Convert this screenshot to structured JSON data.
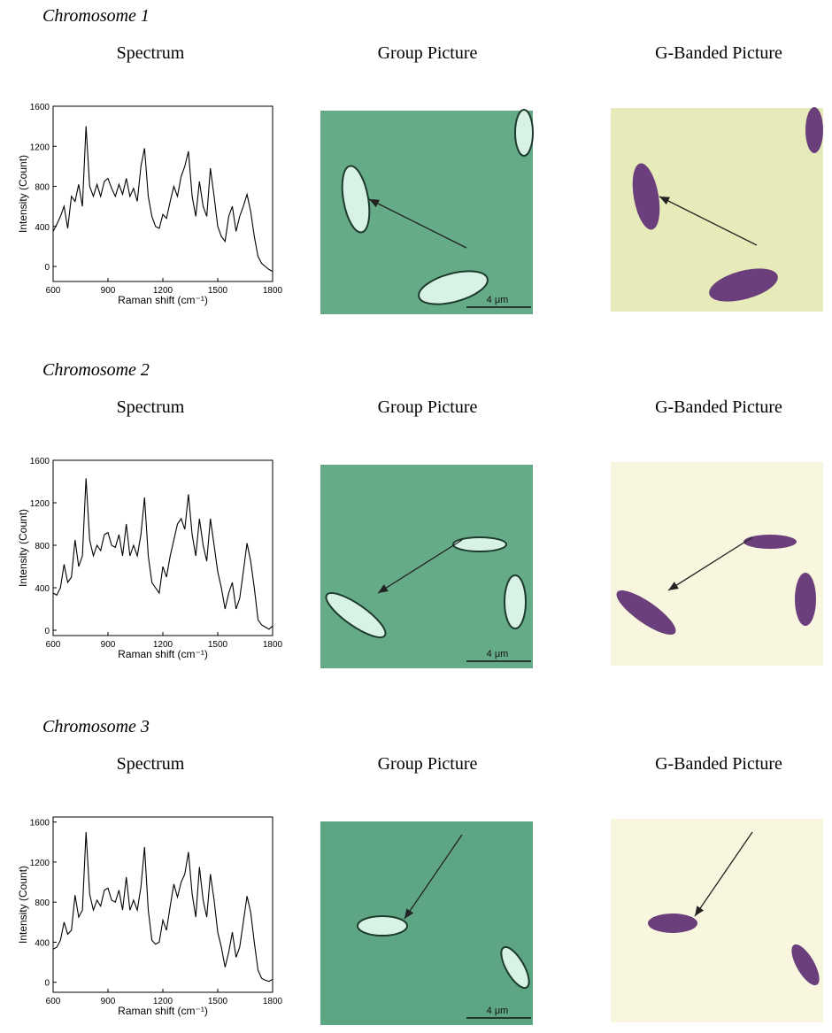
{
  "figure": {
    "rows": [
      {
        "heading": "Chromosome 1",
        "column_titles": [
          "Spectrum",
          "Group Picture",
          "G-Banded Picture"
        ],
        "scale_bar": "4 μm"
      },
      {
        "heading": "Chromosome 2",
        "column_titles": [
          "Spectrum",
          "Group Picture",
          "G-Banded Picture"
        ],
        "scale_bar": "4 μm"
      },
      {
        "heading": "Chromosome 3",
        "column_titles": [
          "Spectrum",
          "Group Picture",
          "G-Banded Picture"
        ],
        "scale_bar": "4 μm"
      }
    ]
  },
  "chart_data": [
    {
      "type": "line",
      "xlabel": "Raman shift (cm⁻¹)",
      "ylabel": "Intensity (Count)",
      "x": [
        600,
        620,
        640,
        660,
        680,
        700,
        720,
        740,
        760,
        780,
        800,
        820,
        840,
        860,
        880,
        900,
        920,
        940,
        960,
        980,
        1000,
        1020,
        1040,
        1060,
        1080,
        1100,
        1120,
        1140,
        1160,
        1180,
        1200,
        1220,
        1240,
        1260,
        1280,
        1300,
        1320,
        1340,
        1360,
        1380,
        1400,
        1420,
        1440,
        1460,
        1480,
        1500,
        1520,
        1540,
        1560,
        1580,
        1600,
        1620,
        1640,
        1660,
        1680,
        1700,
        1720,
        1740,
        1760,
        1780,
        1800
      ],
      "series": [
        {
          "color": "#000000",
          "values": [
            350,
            420,
            500,
            600,
            380,
            700,
            650,
            820,
            600,
            1400,
            800,
            700,
            820,
            700,
            850,
            880,
            780,
            700,
            820,
            720,
            880,
            700,
            780,
            650,
            1000,
            1180,
            700,
            500,
            400,
            380,
            520,
            480,
            650,
            800,
            700,
            900,
            1000,
            1150,
            700,
            500,
            850,
            600,
            500,
            980,
            700,
            400,
            300,
            250,
            500,
            600,
            350,
            500,
            600,
            720,
            550,
            300,
            100,
            30,
            0,
            -30,
            -50
          ]
        }
      ],
      "xlim": [
        600,
        1800
      ],
      "ylim": [
        -150,
        1600
      ],
      "xticks": [
        600,
        900,
        1200,
        1500,
        1800
      ],
      "yticks": [
        0,
        400,
        800,
        1200,
        1600
      ]
    },
    {
      "type": "line",
      "xlabel": "Raman shift (cm⁻¹)",
      "ylabel": "Intensity (Count)",
      "x": [
        600,
        620,
        640,
        660,
        680,
        700,
        720,
        740,
        760,
        780,
        800,
        820,
        840,
        860,
        880,
        900,
        920,
        940,
        960,
        980,
        1000,
        1020,
        1040,
        1060,
        1080,
        1100,
        1120,
        1140,
        1160,
        1180,
        1200,
        1220,
        1240,
        1260,
        1280,
        1300,
        1320,
        1340,
        1360,
        1380,
        1400,
        1420,
        1440,
        1460,
        1480,
        1500,
        1520,
        1540,
        1560,
        1580,
        1600,
        1620,
        1640,
        1660,
        1680,
        1700,
        1720,
        1740,
        1760,
        1780,
        1800
      ],
      "series": [
        {
          "color": "#000000",
          "values": [
            350,
            330,
            400,
            620,
            450,
            500,
            850,
            600,
            700,
            1430,
            850,
            700,
            800,
            750,
            900,
            920,
            800,
            780,
            900,
            700,
            1000,
            700,
            800,
            700,
            900,
            1250,
            700,
            450,
            400,
            350,
            600,
            500,
            700,
            850,
            1000,
            1050,
            950,
            1280,
            900,
            700,
            1050,
            800,
            650,
            1050,
            800,
            550,
            400,
            200,
            350,
            450,
            200,
            300,
            550,
            820,
            650,
            400,
            100,
            50,
            30,
            10,
            40
          ]
        }
      ],
      "xlim": [
        600,
        1800
      ],
      "ylim": [
        -50,
        1600
      ],
      "xticks": [
        600,
        900,
        1200,
        1500,
        1800
      ],
      "yticks": [
        0,
        400,
        800,
        1200,
        1600
      ]
    },
    {
      "type": "line",
      "xlabel": "Raman shift (cm⁻¹)",
      "ylabel": "Intensity (Count)",
      "x": [
        600,
        620,
        640,
        660,
        680,
        700,
        720,
        740,
        760,
        780,
        800,
        820,
        840,
        860,
        880,
        900,
        920,
        940,
        960,
        980,
        1000,
        1020,
        1040,
        1060,
        1080,
        1100,
        1120,
        1140,
        1160,
        1180,
        1200,
        1220,
        1240,
        1260,
        1280,
        1300,
        1320,
        1340,
        1360,
        1380,
        1400,
        1420,
        1440,
        1460,
        1480,
        1500,
        1520,
        1540,
        1560,
        1580,
        1600,
        1620,
        1640,
        1660,
        1680,
        1700,
        1720,
        1740,
        1760,
        1780,
        1800
      ],
      "series": [
        {
          "color": "#000000",
          "values": [
            330,
            350,
            420,
            600,
            480,
            520,
            870,
            650,
            720,
            1500,
            880,
            720,
            820,
            760,
            920,
            940,
            820,
            800,
            920,
            720,
            1050,
            720,
            820,
            720,
            950,
            1350,
            720,
            420,
            380,
            400,
            620,
            520,
            760,
            980,
            850,
            1000,
            1080,
            1300,
            880,
            650,
            1150,
            820,
            650,
            1080,
            820,
            500,
            350,
            150,
            300,
            500,
            250,
            350,
            600,
            860,
            700,
            400,
            120,
            40,
            20,
            10,
            30
          ]
        }
      ],
      "xlim": [
        600,
        1800
      ],
      "ylim": [
        -100,
        1650
      ],
      "xticks": [
        600,
        900,
        1200,
        1500,
        1800
      ],
      "yticks": [
        0,
        400,
        800,
        1200,
        1600
      ]
    }
  ]
}
